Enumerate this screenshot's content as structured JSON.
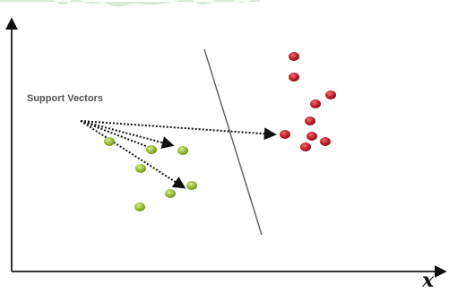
{
  "labels": {
    "support_vectors": "Support Vectors",
    "x_axis": "x"
  },
  "colors": {
    "axis": "#333333",
    "separator": "#666666",
    "arrow": "#111111",
    "green_class": "#9aba3a",
    "green_class_dark": "#6f8f1f",
    "red_class": "#c0202a",
    "red_class_dark": "#8a1016",
    "top_smudge": "#cfe6cf"
  },
  "classes": [
    {
      "name": "green",
      "point_count": 8
    },
    {
      "name": "red",
      "point_count": 10
    }
  ]
}
